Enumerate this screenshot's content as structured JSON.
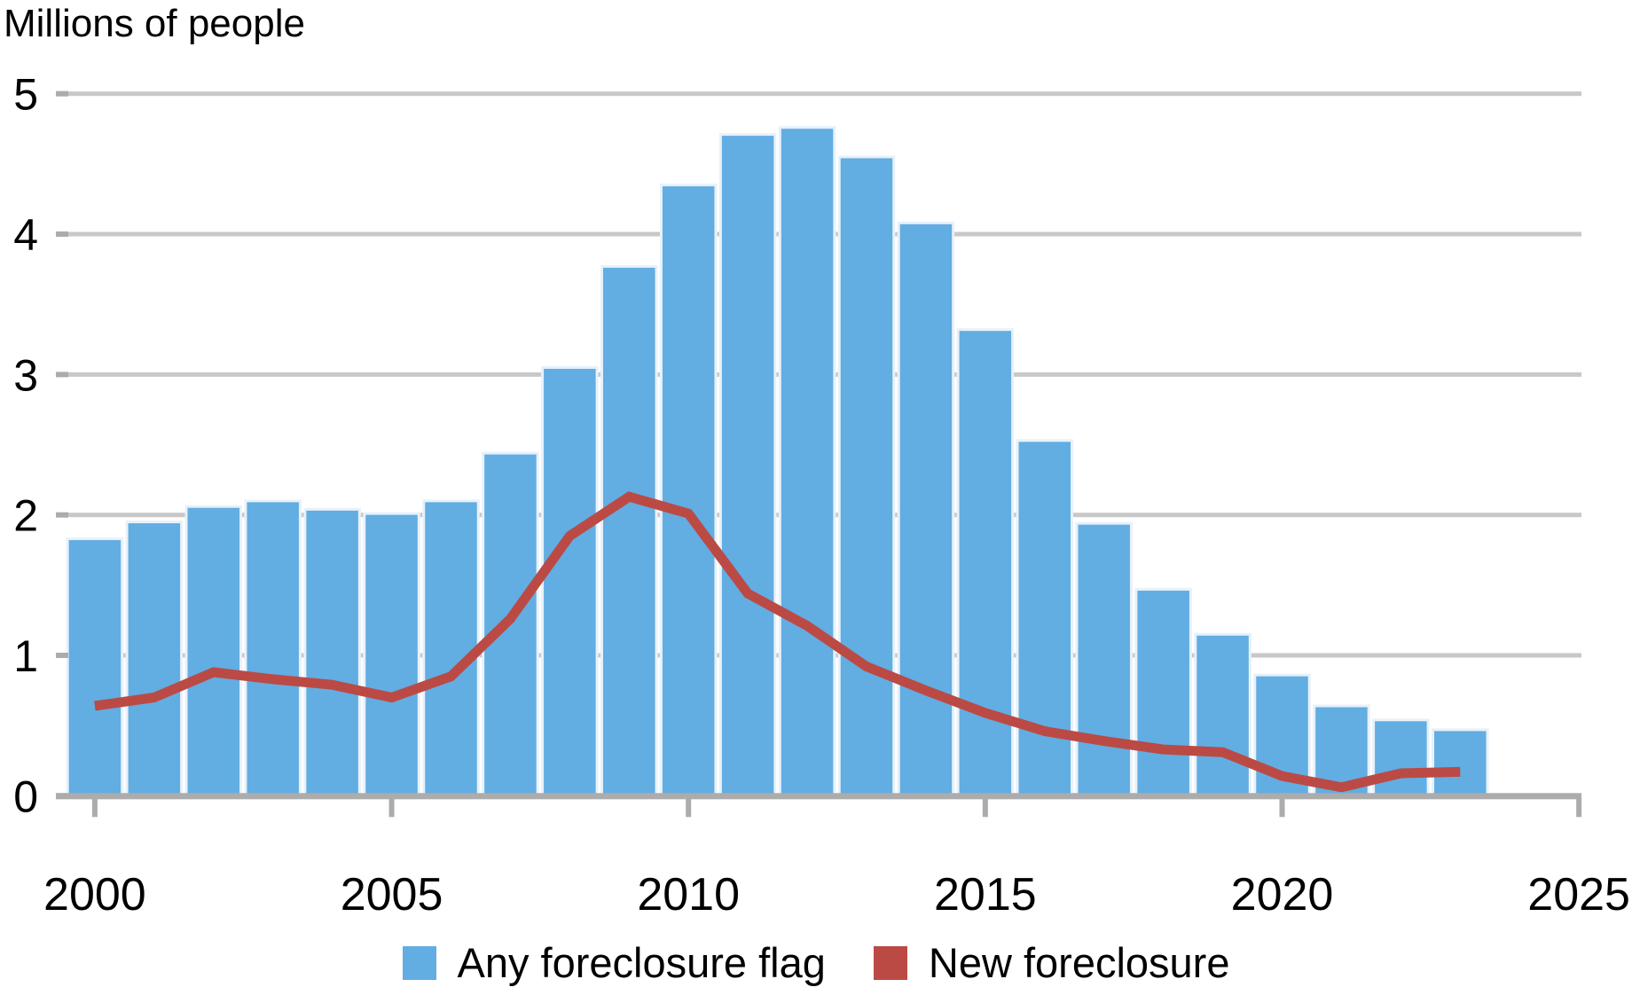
{
  "title": "Millions of people",
  "legend": [
    {
      "label": "Any foreclosure flag",
      "color": "#62ADE2"
    },
    {
      "label": "New foreclosure",
      "color": "#BB4A45"
    }
  ],
  "colors": {
    "bar_fill": "#62ADE2",
    "bar_border": "#E7F1FA",
    "line": "#BB4A45",
    "gridline": "#C8C8C8",
    "axis": "#ACACAC",
    "text": "#000000",
    "background": "#FFFFFF"
  },
  "chart_data": {
    "type": "bar",
    "title": "Millions of people",
    "xlabel": "",
    "ylabel": "Millions of people",
    "categories": [
      2000,
      2001,
      2002,
      2003,
      2004,
      2005,
      2006,
      2007,
      2008,
      2009,
      2010,
      2011,
      2012,
      2013,
      2014,
      2015,
      2016,
      2017,
      2018,
      2019,
      2020,
      2021,
      2022,
      2023
    ],
    "series": [
      {
        "name": "Any foreclosure flag",
        "type": "bar",
        "color": "#62ADE2",
        "values": [
          1.83,
          1.95,
          2.06,
          2.1,
          2.04,
          2.01,
          2.1,
          2.44,
          3.05,
          3.77,
          4.35,
          4.71,
          4.76,
          4.55,
          4.08,
          3.32,
          2.53,
          1.94,
          1.47,
          1.15,
          0.86,
          0.64,
          0.54,
          0.47
        ]
      },
      {
        "name": "New foreclosure",
        "type": "line",
        "color": "#BB4A45",
        "values": [
          0.64,
          0.7,
          0.88,
          0.83,
          0.79,
          0.7,
          0.85,
          1.26,
          1.85,
          2.13,
          2.01,
          1.44,
          1.21,
          0.92,
          0.75,
          0.59,
          0.46,
          0.39,
          0.33,
          0.31,
          0.14,
          0.06,
          0.16,
          0.17
        ]
      }
    ],
    "x_tick_labels": [
      "2000",
      "2005",
      "2010",
      "2015",
      "2020",
      "2025"
    ],
    "x_ticks": [
      2000,
      2005,
      2010,
      2015,
      2020,
      2025
    ],
    "y_tick_labels": [
      "0",
      "1",
      "2",
      "3",
      "4",
      "5"
    ],
    "y_ticks": [
      0,
      1,
      2,
      3,
      4,
      5
    ],
    "xlim": [
      2000,
      2025
    ],
    "ylim": [
      0,
      5
    ],
    "grid": true,
    "legend_position": "bottom"
  }
}
